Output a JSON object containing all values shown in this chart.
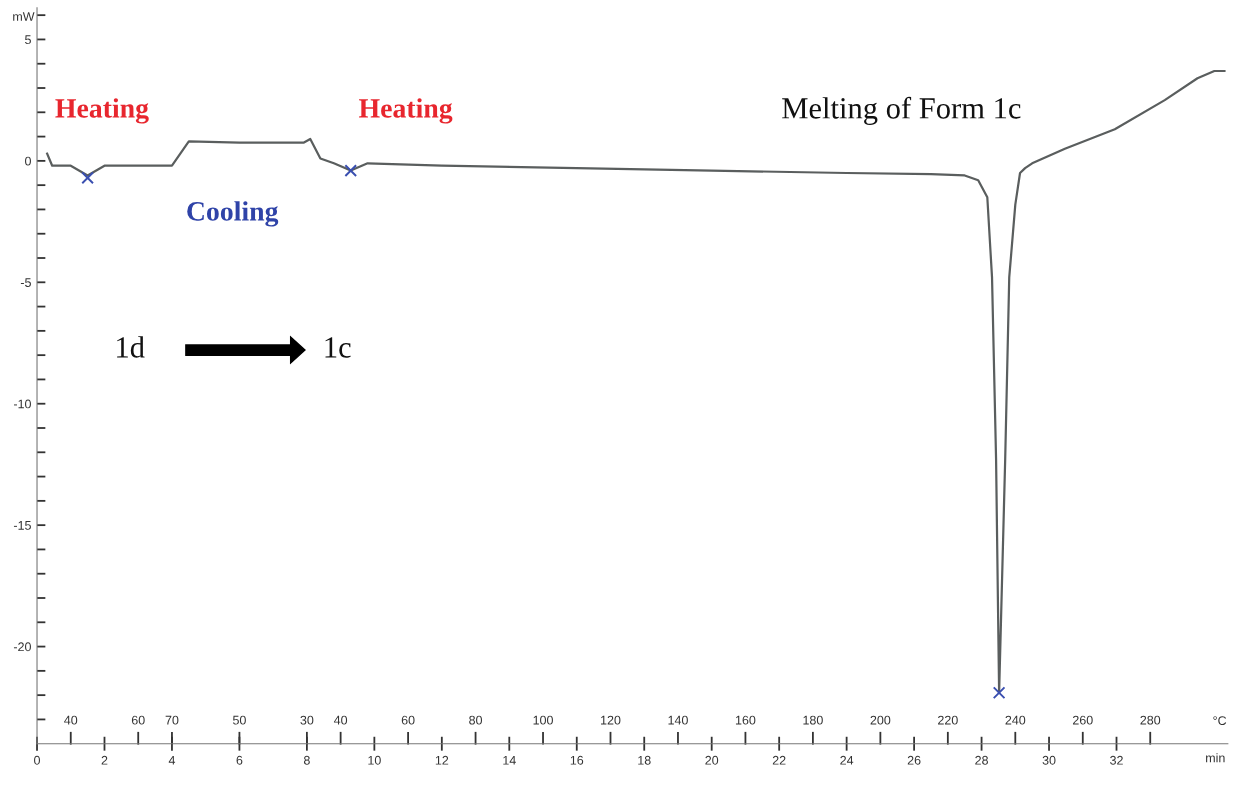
{
  "chart_data": {
    "type": "line",
    "ylabel": "mW",
    "xlabel": "min",
    "xlim": [
      0,
      35.3
    ],
    "ylim": [
      -24,
      6.3
    ],
    "xticks": [
      0,
      2,
      4,
      6,
      8,
      10,
      12,
      14,
      16,
      18,
      20,
      22,
      24,
      26,
      28,
      30,
      32
    ],
    "yticks": [
      {
        "value": -23,
        "label": null
      },
      {
        "value": -22,
        "label": null
      },
      {
        "value": -21,
        "label": null
      },
      -20,
      {
        "value": -19,
        "label": null
      },
      {
        "value": -18,
        "label": null
      },
      {
        "value": -17,
        "label": null
      },
      {
        "value": -16,
        "label": null
      },
      -15,
      {
        "value": -14,
        "label": null
      },
      {
        "value": -13,
        "label": null
      },
      {
        "value": -12,
        "label": null
      },
      {
        "value": -11,
        "label": null
      },
      -10,
      {
        "value": -9,
        "label": null
      },
      {
        "value": -8,
        "label": null
      },
      {
        "value": -7,
        "label": null
      },
      {
        "value": -6,
        "label": null
      },
      -5,
      {
        "value": -4,
        "label": null
      },
      {
        "value": -3,
        "label": null
      },
      {
        "value": -2,
        "label": null
      },
      {
        "value": -1,
        "label": null
      },
      0,
      {
        "value": 1,
        "label": null
      },
      {
        "value": 2,
        "label": null
      },
      {
        "value": 3,
        "label": null
      },
      {
        "value": 4,
        "label": null
      },
      5,
      {
        "value": 6,
        "label": null
      }
    ],
    "grid": false,
    "series": [
      {
        "color": "#5a5e5e",
        "x": [
          0.3,
          0.45,
          1.0,
          1.5,
          2.0,
          4.0,
          4.5,
          6.0,
          7.9,
          8.1,
          8.4,
          8.8,
          9.3,
          9.8,
          12,
          16,
          20,
          24,
          26.5,
          27.5,
          27.9,
          28.17,
          28.31,
          28.43,
          28.52,
          28.7,
          28.82,
          29.0,
          29.14,
          29.29,
          29.5,
          30.47,
          31.95,
          33.43,
          34.4,
          34.9,
          35.2
        ],
        "values": [
          0.3,
          -0.2,
          -0.2,
          -0.6,
          -0.2,
          -0.2,
          0.8,
          0.75,
          0.75,
          0.9,
          0.1,
          -0.1,
          -0.4,
          -0.1,
          -0.2,
          -0.3,
          -0.4,
          -0.5,
          -0.55,
          -0.6,
          -0.8,
          -1.5,
          -4.8,
          -12.3,
          -21.9,
          -12.3,
          -4.8,
          -1.8,
          -0.5,
          -0.3,
          -0.1,
          0.5,
          1.3,
          2.5,
          3.4,
          3.7,
          3.7
        ]
      },
      {
        "type": "scatter",
        "marker": "cross",
        "color": "#3a4fb0",
        "x": [
          1.5,
          9.3,
          28.52
        ],
        "values": [
          -0.7,
          -0.4,
          -21.9
        ]
      }
    ],
    "annotations": [
      "Heating",
      "Cooling",
      "Heating",
      "Melting of Form 1c",
      "1d",
      "1c",
      "°C",
      "40",
      "60",
      "70",
      "50",
      "30",
      "40",
      "60",
      "80",
      "100",
      "120",
      "140",
      "160",
      "180",
      "200",
      "220",
      "240",
      "260",
      "280"
    ]
  }
}
